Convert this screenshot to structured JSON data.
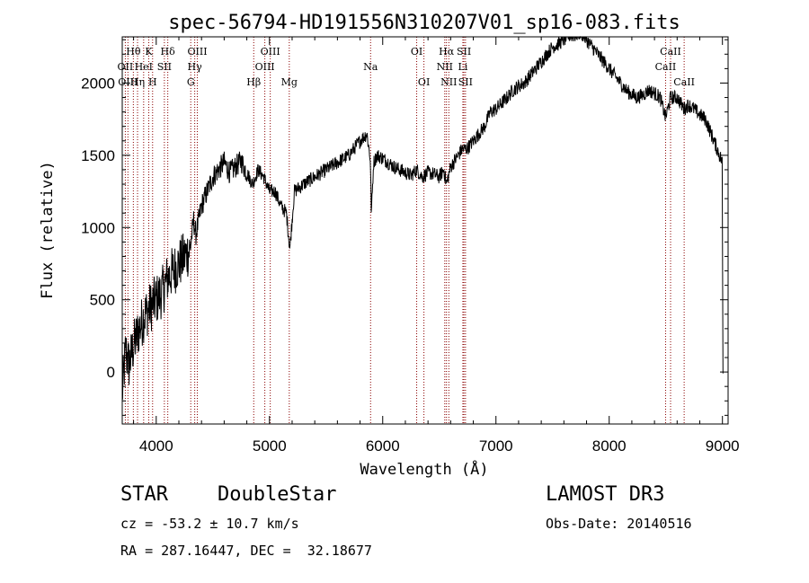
{
  "chart_data": {
    "type": "line",
    "title": "spec-56794-HD191556N310207V01_sp16-083.fits",
    "xlabel": "Wavelength (Å)",
    "ylabel": "Flux (relative)",
    "xlim": [
      3700,
      9050
    ],
    "ylim": [
      -360,
      2320
    ],
    "xticks": [
      4000,
      5000,
      6000,
      7000,
      8000,
      9000
    ],
    "yticks": [
      0,
      500,
      1000,
      1500,
      2000
    ],
    "series": [
      {
        "name": "spectrum",
        "x": [
          3700,
          3730,
          3760,
          3800,
          3850,
          3900,
          3950,
          4000,
          4050,
          4100,
          4150,
          4200,
          4250,
          4300,
          4330,
          4350,
          4400,
          4450,
          4500,
          4550,
          4600,
          4650,
          4700,
          4750,
          4800,
          4850,
          4900,
          4950,
          5000,
          5050,
          5100,
          5150,
          5180,
          5220,
          5300,
          5400,
          5500,
          5600,
          5700,
          5800,
          5860,
          5890,
          5900,
          5920,
          5950,
          6000,
          6050,
          6100,
          6150,
          6200,
          6250,
          6300,
          6350,
          6400,
          6450,
          6500,
          6540,
          6563,
          6600,
          6650,
          6700,
          6750,
          6800,
          6850,
          6900,
          6950,
          7000,
          7050,
          7100,
          7150,
          7200,
          7250,
          7300,
          7350,
          7400,
          7450,
          7500,
          7550,
          7600,
          7650,
          7700,
          7750,
          7800,
          7850,
          7900,
          7950,
          8000,
          8050,
          8100,
          8150,
          8200,
          8250,
          8300,
          8350,
          8400,
          8450,
          8498,
          8542,
          8600,
          8662,
          8700,
          8750,
          8800,
          8850,
          8900,
          8950,
          9000,
          9005
        ],
        "y": [
          -150,
          150,
          50,
          180,
          300,
          400,
          450,
          500,
          550,
          650,
          700,
          750,
          800,
          850,
          1050,
          950,
          1150,
          1250,
          1350,
          1400,
          1450,
          1380,
          1420,
          1460,
          1380,
          1300,
          1400,
          1350,
          1250,
          1250,
          1150,
          1100,
          850,
          1250,
          1300,
          1350,
          1400,
          1450,
          1500,
          1600,
          1650,
          1480,
          1100,
          1450,
          1500,
          1480,
          1450,
          1420,
          1400,
          1380,
          1360,
          1400,
          1350,
          1380,
          1370,
          1350,
          1400,
          1300,
          1420,
          1480,
          1540,
          1550,
          1600,
          1650,
          1700,
          1800,
          1820,
          1860,
          1900,
          1950,
          1980,
          2000,
          2050,
          2100,
          2150,
          2200,
          2250,
          2270,
          2300,
          2330,
          2330,
          2350,
          2300,
          2250,
          2200,
          2150,
          2100,
          2050,
          2000,
          1950,
          1920,
          1900,
          1920,
          1950,
          1930,
          1900,
          1760,
          1900,
          1900,
          1820,
          1850,
          1820,
          1780,
          1750,
          1650,
          1550,
          1450,
          -10
        ]
      }
    ],
    "lines": [
      {
        "label": "Hθ",
        "wavelength": 3798,
        "row": 0
      },
      {
        "label": "OII",
        "wavelength": 3727,
        "row": 1
      },
      {
        "label": "OIII",
        "wavelength": 3750,
        "row": 2
      },
      {
        "label": "K",
        "wavelength": 3934,
        "row": 0
      },
      {
        "label": "HeI",
        "wavelength": 3889,
        "row": 1
      },
      {
        "label": "Hη",
        "wavelength": 3835,
        "row": 2
      },
      {
        "label": "Hδ",
        "wavelength": 4102,
        "row": 0
      },
      {
        "label": "SII",
        "wavelength": 4072,
        "row": 1
      },
      {
        "label": "H",
        "wavelength": 3968,
        "row": 2
      },
      {
        "label": "OIII",
        "wavelength": 4363,
        "row": 0
      },
      {
        "label": "Hγ",
        "wavelength": 4340,
        "row": 1
      },
      {
        "label": "G",
        "wavelength": 4305,
        "row": 2
      },
      {
        "label": "OIII",
        "wavelength": 5007,
        "row": 0
      },
      {
        "label": "OIII",
        "wavelength": 4959,
        "row": 1
      },
      {
        "label": "Hβ",
        "wavelength": 4861,
        "row": 2
      },
      {
        "label": "Mg",
        "wavelength": 5175,
        "row": 2
      },
      {
        "label": "Na",
        "wavelength": 5893,
        "row": 1
      },
      {
        "label": "OI",
        "wavelength": 6300,
        "row": 0
      },
      {
        "label": "OI",
        "wavelength": 6364,
        "row": 2
      },
      {
        "label": "Hα",
        "wavelength": 6563,
        "row": 0
      },
      {
        "label": "SII",
        "wavelength": 6717,
        "row": 0
      },
      {
        "label": "NII",
        "wavelength": 6548,
        "row": 1
      },
      {
        "label": "Li",
        "wavelength": 6708,
        "row": 1
      },
      {
        "label": "NII",
        "wavelength": 6584,
        "row": 2
      },
      {
        "label": "SII",
        "wavelength": 6731,
        "row": 2
      },
      {
        "label": "CaII",
        "wavelength": 8542,
        "row": 0
      },
      {
        "label": "CaII",
        "wavelength": 8498,
        "row": 1
      },
      {
        "label": "CaII",
        "wavelength": 8662,
        "row": 2
      }
    ]
  },
  "info": {
    "class": "STAR",
    "subclass": "DoubleStar",
    "survey": "LAMOST DR3",
    "cz": "cz = -53.2 ± 10.7 km/s",
    "obs_date": "Obs-Date: 20140516",
    "coords": "RA = 287.16447, DEC =  32.18677"
  },
  "colors": {
    "line_marker": "#8b0000",
    "spectrum": "#000000",
    "axis": "#000000"
  }
}
